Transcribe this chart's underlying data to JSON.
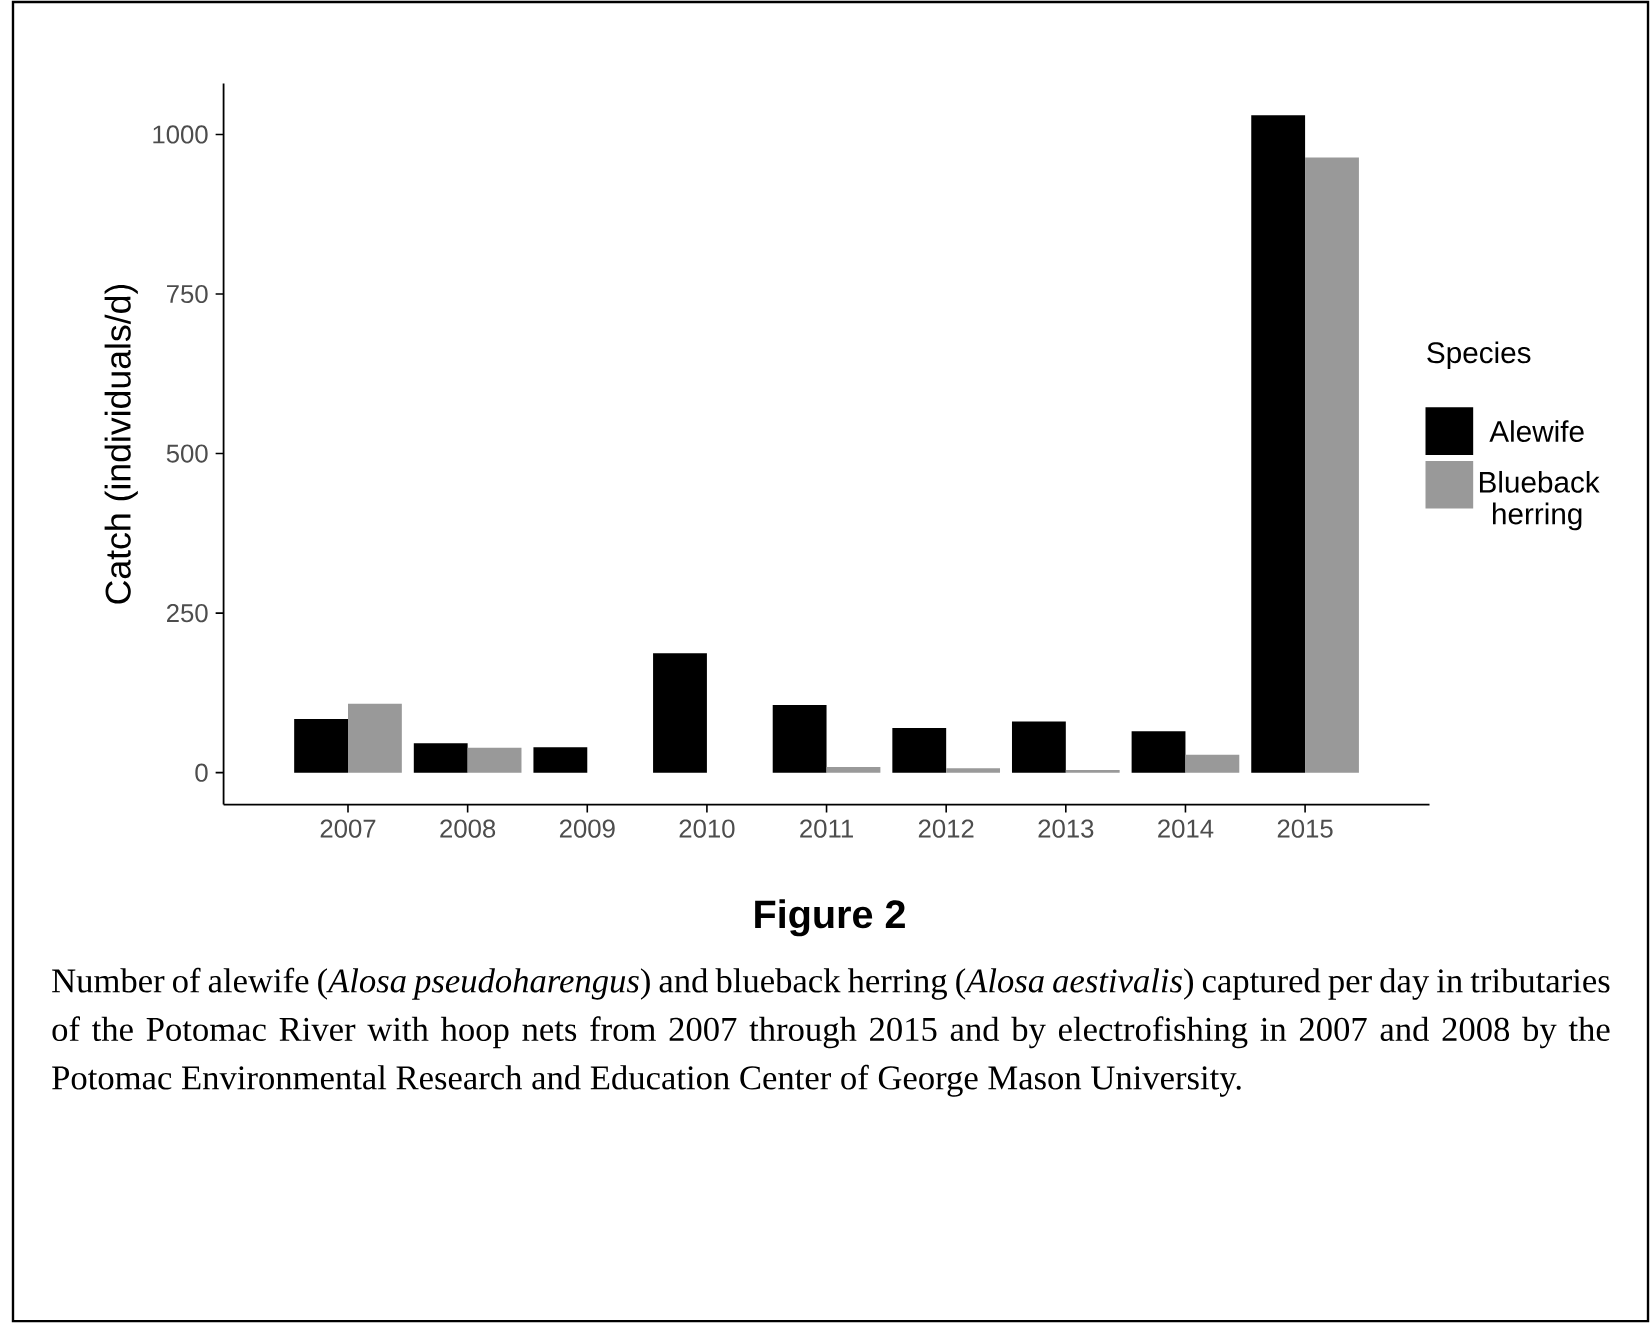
{
  "chart_data": {
    "type": "bar",
    "title": "Figure 2",
    "ylabel": "Catch (individuals/d)",
    "legend_title": "Species",
    "legend": "right",
    "categories": [
      "2007",
      "2008",
      "2009",
      "2010",
      "2011",
      "2012",
      "2013",
      "2014",
      "2015"
    ],
    "series": [
      {
        "name": "Alewife",
        "color": "#000000",
        "values": [
          84,
          46,
          40,
          187,
          106,
          70,
          80,
          65,
          1030
        ]
      },
      {
        "name": "Blueback herring",
        "color": "#999999",
        "values": [
          108,
          39,
          0,
          0,
          9,
          7,
          4,
          28,
          964
        ]
      }
    ],
    "ylim": [
      -50,
      1080
    ],
    "yticks": [
      0,
      250,
      500,
      750,
      1000
    ],
    "annotations": [
      "Number of alewife (*Alosa pseudoharengus*) and blueback herring (*Alosa aestivalis*) captured per day in tributaries of the Potomac River with hoop nets from 2007 through 2015 and by electrofishing in 2007 and 2008 by the Potomac Environmental Research and Education Center of George Mason University."
    ]
  }
}
